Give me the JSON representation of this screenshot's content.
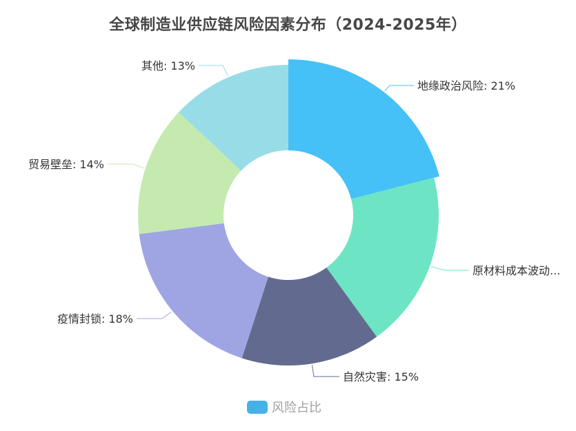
{
  "chart_data": {
    "type": "pie",
    "variant": "donut",
    "title": "全球制造业供应链风险因素分布（2024-2025年）",
    "legend": {
      "position": "bottom",
      "entries": [
        "风险占比"
      ],
      "color": "#45b1e8"
    },
    "series": [
      {
        "name": "风险占比",
        "data": [
          {
            "label": "地缘政治风险",
            "value": 21,
            "display": "地缘政治风险: 21%",
            "color": "#45c1f7",
            "emphasized": true
          },
          {
            "label": "原材料成本波动",
            "value": 19,
            "display": "原材料成本波动...",
            "color": "#6de5c4"
          },
          {
            "label": "自然灾害",
            "value": 15,
            "display": "自然灾害: 15%",
            "color": "#626b8f"
          },
          {
            "label": "疫情封锁",
            "value": 18,
            "display": "疫情封锁: 18%",
            "color": "#9fa5e3"
          },
          {
            "label": "贸易壁垒",
            "value": 14,
            "display": "贸易壁垒: 14%",
            "color": "#c4eab0"
          },
          {
            "label": "其他",
            "value": 13,
            "display": "其他: 13%",
            "color": "#98dce8"
          }
        ]
      }
    ]
  },
  "title": "全球制造业供应链风险因素分布（2024-2025年）",
  "legend_label": "风险占比"
}
